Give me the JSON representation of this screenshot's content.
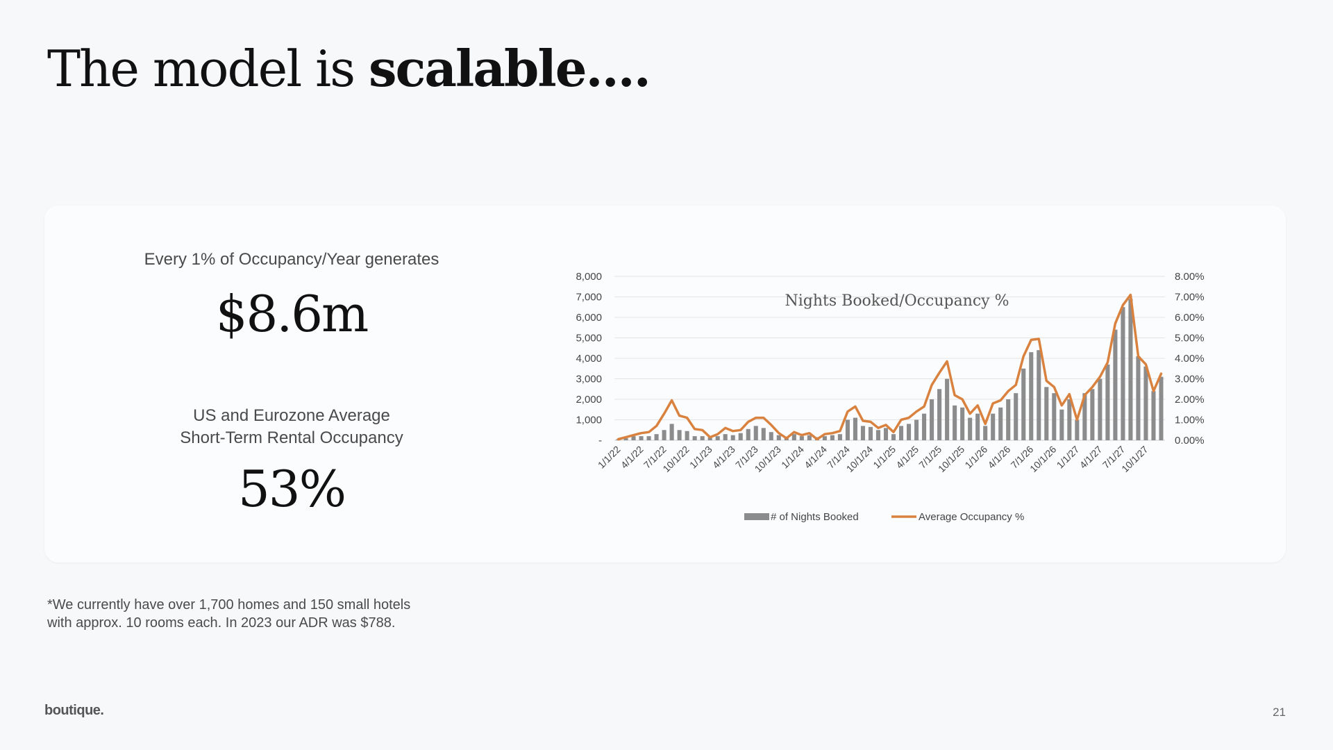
{
  "slide": {
    "title_normal": "The model is ",
    "title_bold": "scalable....",
    "stat1_label": "Every 1% of Occupancy/Year generates",
    "stat1_value": "$8.6m",
    "stat2_label_line1": "US and Eurozone Average",
    "stat2_label_line2": "Short-Term Rental Occupancy",
    "stat2_value": "53%",
    "footnote_line1": "*We currently have over 1,700 homes and 150 small hotels",
    "footnote_line2": "with approx. 10 rooms each.  In 2023 our ADR was $788.",
    "logo": "boutique.",
    "page_number": "21"
  },
  "chart_data": {
    "type": "bar",
    "title": "Nights Booked/Occupancy %",
    "xlabel": "",
    "ylabel": "",
    "ylim": [
      0,
      8000
    ],
    "y2lim": [
      0,
      8
    ],
    "y_ticks": [
      "-",
      "1,000",
      "2,000",
      "3,000",
      "4,000",
      "5,000",
      "6,000",
      "7,000",
      "8,000"
    ],
    "y2_ticks": [
      "0.00%",
      "1.00%",
      "2.00%",
      "3.00%",
      "4.00%",
      "5.00%",
      "6.00%",
      "7.00%",
      "8.00%"
    ],
    "x_tick_labels": [
      "1/1/22",
      "4/1/22",
      "7/1/22",
      "10/1/22",
      "1/1/23",
      "4/1/23",
      "7/1/23",
      "10/1/23",
      "1/1/24",
      "4/1/24",
      "7/1/24",
      "10/1/24",
      "1/1/25",
      "4/1/25",
      "7/1/25",
      "10/1/25",
      "1/1/26",
      "4/1/26",
      "7/1/26",
      "10/1/26",
      "1/1/27",
      "4/1/27",
      "7/1/27",
      "10/1/27"
    ],
    "grid": true,
    "legend_position": "bottom",
    "series": [
      {
        "name": "# of Nights Booked",
        "type": "bar",
        "axis": "left",
        "color": "#8c8c8c",
        "values": [
          50,
          100,
          200,
          200,
          200,
          300,
          500,
          800,
          500,
          450,
          200,
          200,
          150,
          200,
          300,
          250,
          350,
          550,
          700,
          600,
          400,
          250,
          150,
          300,
          200,
          250,
          150,
          200,
          250,
          300,
          1000,
          1100,
          700,
          650,
          500,
          600,
          300,
          700,
          800,
          1000,
          1300,
          2000,
          2500,
          3000,
          1700,
          1600,
          1100,
          1300,
          700,
          1300,
          1600,
          2000,
          2300,
          3500,
          4300,
          4400,
          2600,
          2300,
          1500,
          2000,
          1000,
          2300,
          2500,
          3000,
          3700,
          5400,
          6500,
          6900,
          4100,
          3600,
          2400,
          3100
        ]
      },
      {
        "name": "Average Occupancy %",
        "type": "line",
        "axis": "right",
        "color": "#d9823f",
        "values": [
          0.05,
          0.15,
          0.25,
          0.35,
          0.4,
          0.7,
          1.3,
          1.95,
          1.2,
          1.1,
          0.55,
          0.5,
          0.15,
          0.3,
          0.6,
          0.45,
          0.5,
          0.9,
          1.1,
          1.1,
          0.75,
          0.35,
          0.1,
          0.4,
          0.25,
          0.35,
          0.05,
          0.3,
          0.35,
          0.45,
          1.4,
          1.65,
          0.95,
          0.9,
          0.6,
          0.75,
          0.4,
          1.0,
          1.1,
          1.4,
          1.65,
          2.7,
          3.3,
          3.85,
          2.2,
          2.0,
          1.3,
          1.7,
          0.8,
          1.8,
          1.95,
          2.4,
          2.7,
          4.1,
          4.9,
          4.95,
          2.9,
          2.6,
          1.7,
          2.25,
          1.0,
          2.2,
          2.6,
          3.1,
          3.8,
          5.7,
          6.6,
          7.1,
          4.1,
          3.7,
          2.4,
          3.25
        ]
      }
    ]
  }
}
